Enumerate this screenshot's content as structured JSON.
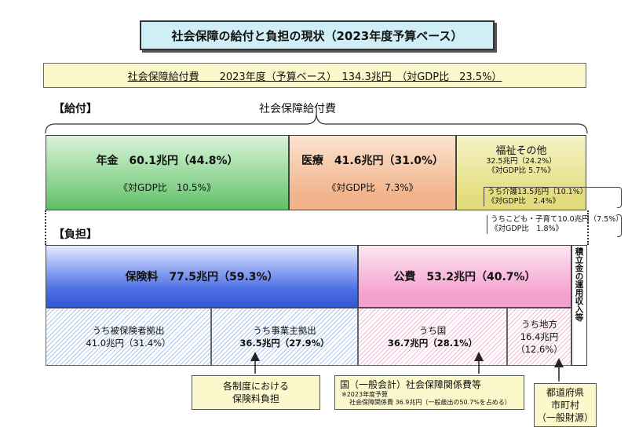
{
  "title": "社会保障の給付と負担の現状（2023年度予算ベース）",
  "summary": "社会保障給付費　　2023年度（予算ベース）　134.3兆円　（対GDP比　23.5%）",
  "benefits": {
    "section_label": "【給付】",
    "brace_label": "社会保障給付費",
    "pension": {
      "label": "年金　60.1兆円（44.8%）",
      "gdp": "《対GDP比　10.5%》",
      "color": "#7fcf85"
    },
    "medical": {
      "label": "医療　41.6兆円（31.0%）",
      "gdp": "《対GDP比　7.3%》",
      "color": "#f2b48c"
    },
    "welfare": {
      "label": "福祉その他",
      "amount": "32.5兆円（24.2%）",
      "gdp": "《対GDP比 5.7%》",
      "care_line1": "うち介護13.5兆円（10.1%）",
      "care_line2": "《対GDP比　2.4%》",
      "child_line1": "うちこども・子育て10.0兆円（7.5%）",
      "child_line2": "《対GDP比　1.8%》",
      "color": "#e3dc7d"
    }
  },
  "burden": {
    "section_label": "【負担】",
    "insurance": {
      "label": "保険料　77.5兆円（59.3%）",
      "color": "#4f71e6"
    },
    "public": {
      "label": "公費　53.2兆円（40.7%）",
      "color": "#f4a0cf"
    },
    "reserve": "積立金の運用収入等",
    "insured": {
      "line1": "うち被保険者拠出",
      "line2": "41.0兆円（31.4%）"
    },
    "employer": {
      "line1": "うち事業主拠出",
      "line2": "36.5兆円（27.9%）"
    },
    "national": {
      "line1": "うち国",
      "line2": "36.7兆円（28.1%）"
    },
    "local": {
      "line1": "うち地方",
      "line2": "16.4兆円",
      "line3": "（12.6%）"
    }
  },
  "callouts": {
    "premium": {
      "line1": "各制度における",
      "line2": "保険料負担"
    },
    "national": {
      "line1": "国（一般会計）社会保障関係費等",
      "note1": "※2023年度予算",
      "note2": "社会保障関係費 36.9兆円（一般歳出の50.7%を占める）"
    },
    "local": {
      "line1": "都道府県",
      "line2": "市町村",
      "line3": "（一般財源）"
    }
  }
}
